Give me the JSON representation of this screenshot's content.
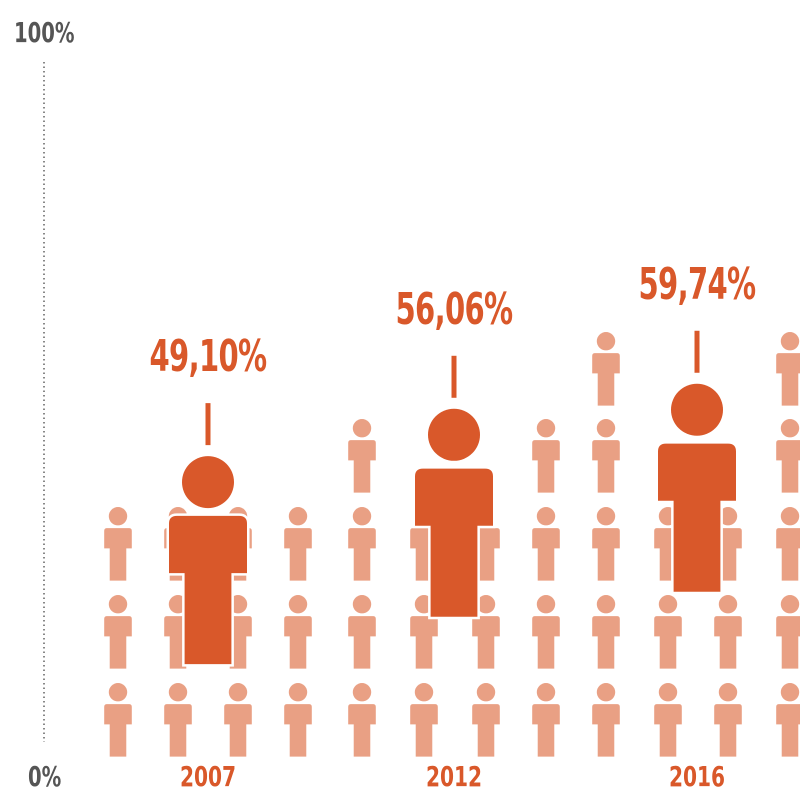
{
  "chart_data": {
    "type": "pictogram",
    "categories": [
      "2007",
      "2012",
      "2016"
    ],
    "values": [
      49.1,
      56.06,
      59.74
    ],
    "value_labels": [
      "49,10%",
      "56,06%",
      "59,74%"
    ],
    "ylim": [
      0,
      100
    ],
    "y_tick_labels": {
      "max": "100%",
      "min": "0%"
    },
    "title": "",
    "xlabel": "",
    "ylabel": "",
    "grid": false,
    "colors": {
      "accent": "#d9582a",
      "crowd": "#e9a084",
      "axis": "#888888",
      "axis_text": "#555555"
    }
  }
}
